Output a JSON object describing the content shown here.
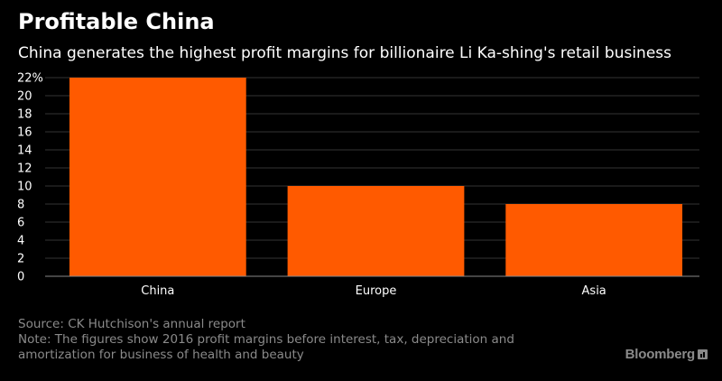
{
  "header": {
    "title": "Profitable China",
    "subtitle": "China generates the highest profit margins for billionaire Li Ka-shing's retail business"
  },
  "colors": {
    "background": "#000000",
    "bar": "#ff5a00",
    "gridline": "#333333",
    "axis_text": "#ffffff",
    "footer_text": "#8a8a8a"
  },
  "chart_data": {
    "type": "bar",
    "title": "Profitable China",
    "subtitle": "China generates the highest profit margins for billionaire Li Ka-shing's retail business",
    "categories": [
      "China",
      "Europe",
      "Asia"
    ],
    "values": [
      22,
      10,
      8
    ],
    "ylim": [
      0,
      22
    ],
    "yticks": [
      0,
      2,
      4,
      6,
      8,
      10,
      12,
      14,
      16,
      18,
      20,
      22
    ],
    "ytick_labels": [
      "0",
      "2",
      "4",
      "6",
      "8",
      "10",
      "12",
      "14",
      "16",
      "18",
      "20",
      "22%"
    ],
    "xlabel": "",
    "ylabel": "",
    "grid": true
  },
  "footer": {
    "source": "Source: CK Hutchison's annual report",
    "note_line1": "Note: The figures show 2016 profit margins before interest, tax, depreciation and",
    "note_line2": "amortization for business of health and beauty",
    "brand": "Bloomberg",
    "brand_icon": "bloomberg-logo-icon"
  }
}
